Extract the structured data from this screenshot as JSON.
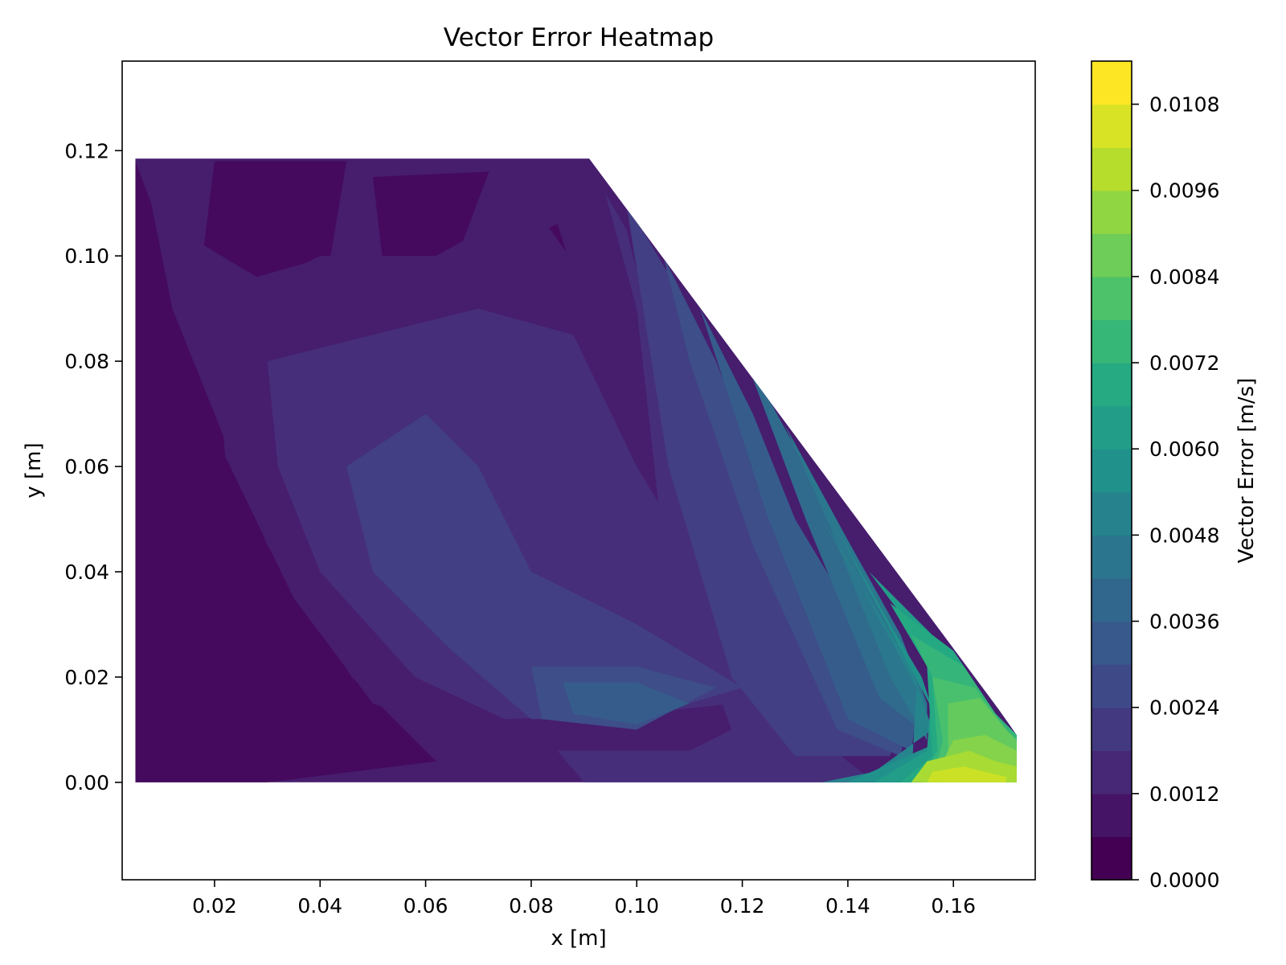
{
  "chart_data": {
    "type": "heatmap",
    "title": "Vector Error Heatmap",
    "xlabel": "x [m]",
    "ylabel": "y [m]",
    "colorbar_label": "Vector Error [m/s]",
    "xlim": [
      0.0025,
      0.1755
    ],
    "ylim": [
      -0.0185,
      0.137
    ],
    "x_ticks": [
      0.02,
      0.04,
      0.06,
      0.08,
      0.1,
      0.12,
      0.14,
      0.16
    ],
    "x_tick_labels": [
      "0.02",
      "0.04",
      "0.06",
      "0.08",
      "0.10",
      "0.12",
      "0.14",
      "0.16"
    ],
    "y_ticks": [
      0.0,
      0.02,
      0.04,
      0.06,
      0.08,
      0.1,
      0.12
    ],
    "y_tick_labels": [
      "0.00",
      "0.02",
      "0.04",
      "0.06",
      "0.08",
      "0.10",
      "0.12"
    ],
    "colorbar_ticks": [
      0.0,
      0.0012,
      0.0024,
      0.0036,
      0.0048,
      0.006,
      0.0072,
      0.0084,
      0.0096,
      0.0108
    ],
    "colorbar_tick_labels": [
      "0.0000",
      "0.0012",
      "0.0024",
      "0.0036",
      "0.0048",
      "0.0060",
      "0.0072",
      "0.0084",
      "0.0096",
      "0.0108"
    ],
    "colorbar_range": [
      0.0,
      0.0114
    ],
    "colorbar_levels": 19,
    "colormap": "viridis",
    "grid": false,
    "domain_outline": [
      [
        0.005,
        0.0
      ],
      [
        0.172,
        0.0
      ],
      [
        0.172,
        0.009
      ],
      [
        0.1685,
        0.014
      ],
      [
        0.091,
        0.1185
      ],
      [
        0.005,
        0.1185
      ]
    ],
    "contour_regions": [
      {
        "level": 0.0003,
        "polygon": [
          [
            0.005,
            0.0
          ],
          [
            0.03,
            0.0
          ],
          [
            0.062,
            0.004
          ],
          [
            0.046,
            0.02
          ],
          [
            0.03,
            0.045
          ],
          [
            0.02,
            0.07
          ],
          [
            0.012,
            0.09
          ],
          [
            0.008,
            0.11
          ],
          [
            0.005,
            0.118
          ]
        ]
      },
      {
        "level": 0.0003,
        "polygon": [
          [
            0.02,
            0.118
          ],
          [
            0.045,
            0.118
          ],
          [
            0.042,
            0.1
          ],
          [
            0.028,
            0.096
          ],
          [
            0.018,
            0.102
          ]
        ]
      },
      {
        "level": 0.0003,
        "polygon": [
          [
            0.05,
            0.115
          ],
          [
            0.072,
            0.116
          ],
          [
            0.066,
            0.1
          ],
          [
            0.052,
            0.098
          ]
        ]
      },
      {
        "level": 0.0003,
        "polygon": [
          [
            0.075,
            0.102
          ],
          [
            0.085,
            0.106
          ],
          [
            0.09,
            0.09
          ],
          [
            0.098,
            0.07
          ],
          [
            0.1,
            0.05
          ],
          [
            0.08,
            0.06
          ],
          [
            0.072,
            0.082
          ]
        ]
      },
      {
        "level": 0.0009,
        "polygon": [
          [
            0.02,
            0.09
          ],
          [
            0.04,
            0.1
          ],
          [
            0.062,
            0.1
          ],
          [
            0.08,
            0.11
          ],
          [
            0.098,
            0.085
          ],
          [
            0.104,
            0.06
          ],
          [
            0.125,
            0.02
          ],
          [
            0.1,
            0.012
          ],
          [
            0.07,
            0.008
          ],
          [
            0.05,
            0.015
          ],
          [
            0.035,
            0.035
          ],
          [
            0.022,
            0.062
          ]
        ]
      },
      {
        "level": 0.0015,
        "polygon": [
          [
            0.03,
            0.08
          ],
          [
            0.05,
            0.085
          ],
          [
            0.07,
            0.09
          ],
          [
            0.088,
            0.085
          ],
          [
            0.1,
            0.06
          ],
          [
            0.118,
            0.03
          ],
          [
            0.128,
            0.016
          ],
          [
            0.1,
            0.013
          ],
          [
            0.075,
            0.012
          ],
          [
            0.058,
            0.02
          ],
          [
            0.04,
            0.04
          ],
          [
            0.032,
            0.06
          ]
        ]
      },
      {
        "level": 0.0015,
        "polygon": [
          [
            0.094,
            0.112
          ],
          [
            0.098,
            0.105
          ],
          [
            0.12,
            0.02
          ],
          [
            0.145,
            0.0
          ],
          [
            0.09,
            0.0
          ],
          [
            0.085,
            0.006
          ],
          [
            0.11,
            0.006
          ],
          [
            0.118,
            0.01
          ],
          [
            0.105,
            0.045
          ],
          [
            0.1,
            0.09
          ]
        ]
      },
      {
        "level": 0.0021,
        "polygon": [
          [
            0.045,
            0.06
          ],
          [
            0.06,
            0.07
          ],
          [
            0.07,
            0.06
          ],
          [
            0.08,
            0.04
          ],
          [
            0.09,
            0.035
          ],
          [
            0.1,
            0.03
          ],
          [
            0.12,
            0.018
          ],
          [
            0.1,
            0.012
          ],
          [
            0.08,
            0.012
          ],
          [
            0.065,
            0.025
          ],
          [
            0.05,
            0.04
          ]
        ]
      },
      {
        "level": 0.0021,
        "polygon": [
          [
            0.098,
            0.11
          ],
          [
            0.11,
            0.09
          ],
          [
            0.12,
            0.055
          ],
          [
            0.135,
            0.03
          ],
          [
            0.15,
            0.015
          ],
          [
            0.148,
            0.005
          ],
          [
            0.13,
            0.005
          ],
          [
            0.118,
            0.02
          ],
          [
            0.106,
            0.06
          ]
        ]
      },
      {
        "level": 0.0027,
        "polygon": [
          [
            0.105,
            0.1
          ],
          [
            0.115,
            0.08
          ],
          [
            0.125,
            0.055
          ],
          [
            0.14,
            0.028
          ],
          [
            0.152,
            0.016
          ],
          [
            0.15,
            0.005
          ],
          [
            0.138,
            0.01
          ],
          [
            0.122,
            0.045
          ],
          [
            0.11,
            0.08
          ]
        ]
      },
      {
        "level": 0.0027,
        "polygon": [
          [
            0.08,
            0.022
          ],
          [
            0.1,
            0.022
          ],
          [
            0.115,
            0.018
          ],
          [
            0.1,
            0.01
          ],
          [
            0.082,
            0.012
          ]
        ]
      },
      {
        "level": 0.0033,
        "polygon": [
          [
            0.112,
            0.09
          ],
          [
            0.122,
            0.07
          ],
          [
            0.13,
            0.05
          ],
          [
            0.145,
            0.025
          ],
          [
            0.153,
            0.013
          ],
          [
            0.152,
            0.006
          ],
          [
            0.14,
            0.012
          ],
          [
            0.125,
            0.05
          ]
        ]
      },
      {
        "level": 0.0033,
        "polygon": [
          [
            0.086,
            0.019
          ],
          [
            0.1,
            0.019
          ],
          [
            0.11,
            0.015
          ],
          [
            0.1,
            0.011
          ],
          [
            0.088,
            0.013
          ]
        ]
      },
      {
        "level": 0.0039,
        "polygon": [
          [
            0.12,
            0.082
          ],
          [
            0.132,
            0.06
          ],
          [
            0.143,
            0.038
          ],
          [
            0.153,
            0.02
          ],
          [
            0.154,
            0.01
          ],
          [
            0.146,
            0.016
          ],
          [
            0.132,
            0.05
          ]
        ]
      },
      {
        "level": 0.0045,
        "polygon": [
          [
            0.128,
            0.068
          ],
          [
            0.14,
            0.046
          ],
          [
            0.15,
            0.028
          ],
          [
            0.155,
            0.015
          ],
          [
            0.155,
            0.008
          ],
          [
            0.148,
            0.02
          ],
          [
            0.136,
            0.05
          ]
        ]
      },
      {
        "level": 0.0051,
        "polygon": [
          [
            0.132,
            0.055
          ],
          [
            0.144,
            0.035
          ],
          [
            0.152,
            0.022
          ],
          [
            0.156,
            0.01
          ],
          [
            0.145,
            0.002
          ],
          [
            0.135,
            0.0
          ],
          [
            0.152,
            0.0
          ],
          [
            0.153,
            0.018
          ],
          [
            0.14,
            0.042
          ]
        ]
      },
      {
        "level": 0.0057,
        "polygon": [
          [
            0.138,
            0.048
          ],
          [
            0.148,
            0.03
          ],
          [
            0.154,
            0.02
          ],
          [
            0.158,
            0.008
          ],
          [
            0.14,
            0.0
          ],
          [
            0.156,
            0.0
          ],
          [
            0.157,
            0.012
          ]
        ]
      },
      {
        "level": 0.0063,
        "polygon": [
          [
            0.144,
            0.04
          ],
          [
            0.158,
            0.026
          ],
          [
            0.162,
            0.02
          ],
          [
            0.168,
            0.013
          ],
          [
            0.172,
            0.009
          ],
          [
            0.172,
            0.0
          ],
          [
            0.145,
            0.0
          ],
          [
            0.155,
            0.006
          ],
          [
            0.156,
            0.02
          ],
          [
            0.15,
            0.032
          ]
        ]
      },
      {
        "level": 0.0069,
        "polygon": [
          [
            0.148,
            0.034
          ],
          [
            0.16,
            0.025
          ],
          [
            0.168,
            0.013
          ],
          [
            0.172,
            0.009
          ],
          [
            0.172,
            0.0
          ],
          [
            0.15,
            0.0
          ],
          [
            0.156,
            0.005
          ],
          [
            0.155,
            0.022
          ]
        ]
      },
      {
        "level": 0.0075,
        "polygon": [
          [
            0.152,
            0.028
          ],
          [
            0.162,
            0.022
          ],
          [
            0.168,
            0.013
          ],
          [
            0.172,
            0.009
          ],
          [
            0.172,
            0.0
          ],
          [
            0.153,
            0.0
          ],
          [
            0.157,
            0.006
          ],
          [
            0.156,
            0.02
          ]
        ]
      },
      {
        "level": 0.0081,
        "polygon": [
          [
            0.156,
            0.02
          ],
          [
            0.164,
            0.018
          ],
          [
            0.17,
            0.01
          ],
          [
            0.172,
            0.008
          ],
          [
            0.172,
            0.0
          ],
          [
            0.156,
            0.0
          ],
          [
            0.158,
            0.008
          ]
        ]
      },
      {
        "level": 0.0087,
        "polygon": [
          [
            0.159,
            0.015
          ],
          [
            0.165,
            0.016
          ],
          [
            0.17,
            0.01
          ],
          [
            0.172,
            0.008
          ],
          [
            0.172,
            0.0
          ],
          [
            0.158,
            0.0
          ],
          [
            0.159,
            0.006
          ]
        ]
      },
      {
        "level": 0.0093,
        "polygon": [
          [
            0.16,
            0.008
          ],
          [
            0.166,
            0.009
          ],
          [
            0.172,
            0.006
          ],
          [
            0.172,
            0.0
          ],
          [
            0.154,
            0.0
          ],
          [
            0.157,
            0.002
          ]
        ]
      },
      {
        "level": 0.0099,
        "polygon": [
          [
            0.155,
            0.004
          ],
          [
            0.163,
            0.006
          ],
          [
            0.168,
            0.004
          ],
          [
            0.172,
            0.003
          ],
          [
            0.172,
            0.0
          ],
          [
            0.152,
            0.0
          ]
        ]
      },
      {
        "level": 0.0105,
        "polygon": [
          [
            0.156,
            0.002
          ],
          [
            0.162,
            0.003
          ],
          [
            0.166,
            0.002
          ],
          [
            0.17,
            0.001
          ],
          [
            0.17,
            0.0
          ],
          [
            0.155,
            0.0
          ]
        ]
      }
    ]
  }
}
